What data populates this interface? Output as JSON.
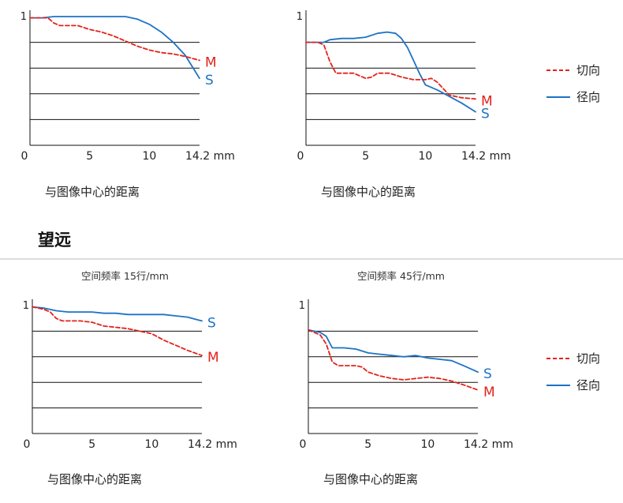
{
  "section_title": "望远",
  "legend": {
    "tangential": "切向",
    "sagittal": "径向"
  },
  "colors": {
    "tangential": "#e2231a",
    "sagittal": "#1d73c5"
  },
  "chart_data": [
    {
      "type": "line",
      "subtitle": "",
      "xlabel": "与图像中心的距离",
      "xticks": [
        "0",
        "5",
        "10",
        "14.2 mm"
      ],
      "yticks": [
        "1"
      ],
      "xlim": [
        0,
        14.2
      ],
      "ylim": [
        0,
        1
      ],
      "grid_y": [
        0.2,
        0.4,
        0.6,
        0.8
      ],
      "series": [
        {
          "name": "S",
          "style": "solid",
          "color": "#1d73c5",
          "x": [
            0,
            1,
            2,
            3,
            4,
            5,
            6,
            7,
            8,
            9,
            10,
            11,
            12,
            13,
            14.2
          ],
          "y": [
            0.99,
            0.99,
            1.0,
            1.0,
            1.0,
            1.0,
            1.0,
            1.0,
            1.0,
            0.98,
            0.94,
            0.88,
            0.8,
            0.7,
            0.52
          ]
        },
        {
          "name": "M",
          "style": "dashed",
          "color": "#e2231a",
          "x": [
            0,
            1,
            1.5,
            2,
            2.5,
            3,
            4,
            5,
            6,
            7,
            8,
            9,
            10,
            11,
            12,
            13,
            14.2
          ],
          "y": [
            0.99,
            0.99,
            0.99,
            0.95,
            0.93,
            0.93,
            0.93,
            0.9,
            0.88,
            0.85,
            0.81,
            0.77,
            0.74,
            0.72,
            0.71,
            0.69,
            0.66
          ]
        }
      ]
    },
    {
      "type": "line",
      "subtitle": "",
      "xlabel": "与图像中心的距离",
      "xticks": [
        "0",
        "5",
        "10",
        "14.2 mm"
      ],
      "yticks": [
        "1"
      ],
      "xlim": [
        0,
        14.2
      ],
      "ylim": [
        0,
        1
      ],
      "grid_y": [
        0.2,
        0.4,
        0.6,
        0.8
      ],
      "series": [
        {
          "name": "S",
          "style": "solid",
          "color": "#1d73c5",
          "x": [
            0,
            1,
            1.5,
            2,
            3,
            4,
            5,
            6,
            6.8,
            7.5,
            8,
            8.5,
            9,
            9.5,
            10,
            11,
            12,
            13,
            14.2
          ],
          "y": [
            0.8,
            0.8,
            0.8,
            0.82,
            0.83,
            0.83,
            0.84,
            0.87,
            0.88,
            0.87,
            0.83,
            0.76,
            0.66,
            0.56,
            0.47,
            0.43,
            0.38,
            0.33,
            0.26
          ]
        },
        {
          "name": "M",
          "style": "dashed",
          "color": "#e2231a",
          "x": [
            0,
            1,
            1.5,
            2,
            2.5,
            3,
            4,
            4.5,
            5,
            5.5,
            6,
            7,
            8,
            9,
            10,
            10.5,
            11,
            11.5,
            12,
            13,
            14.2
          ],
          "y": [
            0.8,
            0.8,
            0.78,
            0.65,
            0.56,
            0.56,
            0.56,
            0.54,
            0.52,
            0.53,
            0.56,
            0.56,
            0.53,
            0.51,
            0.51,
            0.52,
            0.49,
            0.44,
            0.39,
            0.37,
            0.36
          ]
        }
      ]
    },
    {
      "type": "line",
      "subtitle": "空间频率 15行/mm",
      "xlabel": "与图像中心的距离",
      "xticks": [
        "0",
        "5",
        "10",
        "14.2 mm"
      ],
      "yticks": [
        "1"
      ],
      "xlim": [
        0,
        14.2
      ],
      "ylim": [
        0,
        1
      ],
      "grid_y": [
        0.2,
        0.4,
        0.6,
        0.8
      ],
      "series": [
        {
          "name": "S",
          "style": "solid",
          "color": "#1d73c5",
          "x": [
            0,
            1,
            2,
            3,
            4,
            5,
            6,
            7,
            8,
            9,
            10,
            11,
            12,
            13,
            14.2
          ],
          "y": [
            0.99,
            0.98,
            0.96,
            0.95,
            0.95,
            0.95,
            0.94,
            0.94,
            0.93,
            0.93,
            0.93,
            0.93,
            0.92,
            0.91,
            0.88
          ]
        },
        {
          "name": "M",
          "style": "dashed",
          "color": "#e2231a",
          "x": [
            0,
            1,
            1.5,
            2,
            2.5,
            3,
            4,
            5,
            6,
            7,
            8,
            9,
            10,
            11,
            12,
            13,
            14.2
          ],
          "y": [
            0.99,
            0.97,
            0.95,
            0.9,
            0.88,
            0.88,
            0.88,
            0.87,
            0.84,
            0.83,
            0.82,
            0.8,
            0.78,
            0.73,
            0.69,
            0.65,
            0.61
          ]
        }
      ]
    },
    {
      "type": "line",
      "subtitle": "空间频率 45行/mm",
      "xlabel": "与图像中心的距离",
      "xticks": [
        "0",
        "5",
        "10",
        "14.2 mm"
      ],
      "yticks": [
        "1"
      ],
      "xlim": [
        0,
        14.2
      ],
      "ylim": [
        0,
        1
      ],
      "grid_y": [
        0.2,
        0.4,
        0.6,
        0.8
      ],
      "series": [
        {
          "name": "S",
          "style": "solid",
          "color": "#1d73c5",
          "x": [
            0,
            1,
            1.5,
            2,
            3,
            4,
            5,
            6,
            7,
            8,
            9,
            10,
            11,
            12,
            13,
            14.2
          ],
          "y": [
            0.81,
            0.79,
            0.76,
            0.67,
            0.67,
            0.66,
            0.63,
            0.62,
            0.61,
            0.6,
            0.61,
            0.59,
            0.58,
            0.57,
            0.53,
            0.48
          ]
        },
        {
          "name": "M",
          "style": "dashed",
          "color": "#e2231a",
          "x": [
            0,
            1,
            1.5,
            2,
            2.5,
            3,
            4,
            4.5,
            5,
            6,
            7,
            8,
            9,
            10,
            11,
            12,
            13,
            14.2
          ],
          "y": [
            0.81,
            0.77,
            0.7,
            0.56,
            0.53,
            0.53,
            0.53,
            0.52,
            0.48,
            0.45,
            0.43,
            0.42,
            0.43,
            0.44,
            0.43,
            0.41,
            0.38,
            0.34
          ]
        }
      ]
    }
  ]
}
